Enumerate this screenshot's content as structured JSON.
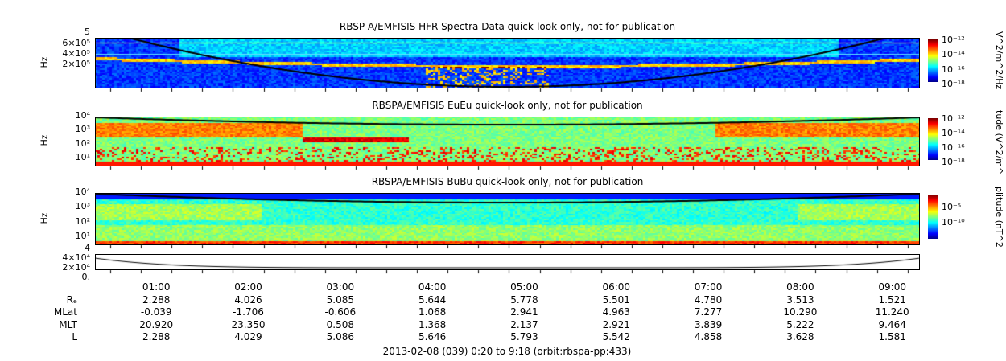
{
  "chart_data": [
    {
      "type": "heatmap",
      "title": "RBSP-A/EMFISIS  HFR Spectra Data quick-look only, not for publication",
      "ylabel": "Hz",
      "yticks": [
        "6×10⁵",
        "4×10⁵",
        "2×10⁵"
      ],
      "ytop": "5",
      "colorbar_label": "V^2/m^2/Hz",
      "colorbar_ticks": [
        "10⁻¹²",
        "10⁻¹⁴",
        "10⁻¹⁶",
        "10⁻¹⁸"
      ],
      "background": "#1030d0"
    },
    {
      "type": "heatmap",
      "title": "RBSPA/EMFISIS  EuEu quick-look only, not for publication",
      "ylabel": "Hz",
      "yticks": [
        "10⁴",
        "10³",
        "10²",
        "10¹"
      ],
      "colorbar_label": "tude (V^2/m^",
      "colorbar_ticks": [
        "10⁻¹²",
        "10⁻¹⁴",
        "10⁻¹⁶",
        "10⁻¹⁸"
      ],
      "background": "#30e060"
    },
    {
      "type": "heatmap",
      "title": "RBSPA/EMFISIS  BuBu quick-look only, not for publication",
      "ylabel": "Hz",
      "yticks": [
        "10⁴",
        "10³",
        "10²",
        "10¹"
      ],
      "colorbar_label": "plitude (nT^2",
      "colorbar_ticks": [
        "10⁻⁵",
        "10⁻¹⁰"
      ],
      "background": "#20c0e0"
    },
    {
      "type": "line",
      "title": "",
      "yticks": [
        "4",
        "4×10⁴",
        "2×10⁴",
        "0."
      ]
    }
  ],
  "xaxis": {
    "ticks": [
      "01:00",
      "02:00",
      "03:00",
      "04:00",
      "05:00",
      "06:00",
      "07:00",
      "08:00",
      "09:00"
    ]
  },
  "ephemeris": {
    "rows": [
      {
        "label": "Rₑ",
        "values": [
          "2.288",
          "4.026",
          "5.085",
          "5.644",
          "5.778",
          "5.501",
          "4.780",
          "3.513",
          "1.521"
        ]
      },
      {
        "label": "MLat",
        "values": [
          "-0.039",
          "-1.706",
          "-0.606",
          "1.068",
          "2.941",
          "4.963",
          "7.277",
          "10.290",
          "11.240"
        ]
      },
      {
        "label": "MLT",
        "values": [
          "20.920",
          "23.350",
          "0.508",
          "1.368",
          "2.137",
          "2.921",
          "3.839",
          "5.222",
          "9.464"
        ]
      },
      {
        "label": "L",
        "values": [
          "2.288",
          "4.029",
          "5.086",
          "5.646",
          "5.793",
          "5.542",
          "4.858",
          "3.628",
          "1.581"
        ]
      }
    ]
  },
  "footer": "2013-02-08 (039) 0:20 to 9:18 (orbit:rbspa-pp:433)"
}
